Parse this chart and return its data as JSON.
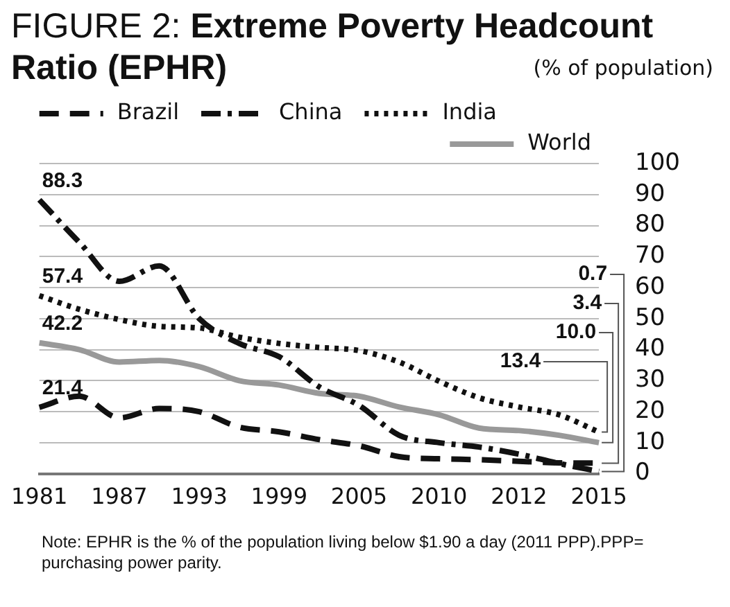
{
  "chart_data": {
    "type": "line",
    "title": "FIGURE 2: Extreme Poverty Headcount Ratio (EPHR)",
    "subtitle": "(% of population)",
    "categories": [
      "1981",
      null,
      "1987",
      null,
      "1993",
      null,
      "1999",
      null,
      "2005",
      null,
      "2010",
      null,
      "2012",
      null,
      "2015"
    ],
    "series": [
      {
        "name": "Brazil",
        "color": "#111111",
        "line_style": "dashed",
        "values": [
          21.4,
          25,
          18,
          21,
          20,
          15,
          13.5,
          11,
          9,
          5.5,
          4.8,
          4.5,
          4,
          3.5,
          3.4
        ]
      },
      {
        "name": "China",
        "color": "#111111",
        "line_style": "dashdot",
        "values": [
          88.3,
          74.6,
          62,
          67,
          50,
          42,
          37.7,
          28,
          22,
          12.4,
          10,
          8.6,
          6.3,
          3.3,
          0.7
        ]
      },
      {
        "name": "India",
        "color": "#111111",
        "line_style": "dotted",
        "values": [
          57.4,
          53,
          49.7,
          47.5,
          47,
          44,
          42,
          40.7,
          39.7,
          36,
          29.8,
          24.5,
          21.5,
          19,
          13.4
        ]
      },
      {
        "name": "World",
        "color": "#999999",
        "line_style": "solid",
        "values": [
          42.2,
          40,
          36,
          36.5,
          34.5,
          30,
          28.6,
          25.9,
          25,
          21.5,
          19,
          14.7,
          13.9,
          12.4,
          10.0
        ]
      }
    ],
    "ylim": [
      0,
      100
    ],
    "yticks": [
      0,
      10,
      20,
      30,
      40,
      50,
      60,
      70,
      80,
      90,
      100
    ],
    "grid": "y",
    "legend": "top",
    "marker": "none",
    "annotations": [
      {
        "text": "88.3",
        "x": "1981",
        "y": 88.3
      },
      {
        "text": "57.4",
        "x": "1981",
        "y": 57.4
      },
      {
        "text": "42.2",
        "x": "1981",
        "y": 42.2
      },
      {
        "text": "21.4",
        "x": "1981",
        "y": 21.4
      },
      {
        "text": "13.4",
        "x": "2015",
        "y": 13.4
      },
      {
        "text": "10.0",
        "x": "2015",
        "y": 10.0
      },
      {
        "text": "3.4",
        "x": "2015",
        "y": 3.4
      },
      {
        "text": "0.7",
        "x": "2015",
        "y": 0.7
      },
      "Note: EPHR is the % of the population living below $1.90 a day (2011 PPP).PPP= purchasing power parity."
    ]
  }
}
